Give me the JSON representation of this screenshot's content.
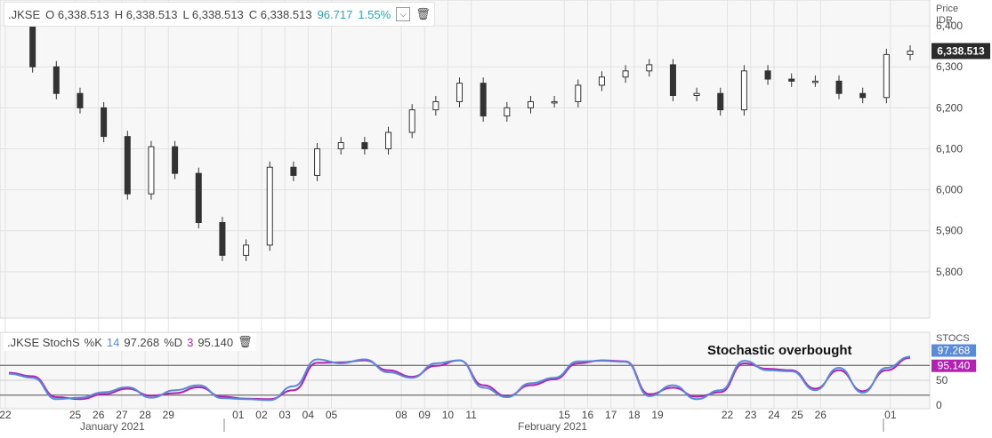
{
  "price_header": {
    "symbol": ".JKSE",
    "open": "O 6,338.513",
    "high": "H 6,338.513",
    "low": "L 6,338.513",
    "close": "C 6,338.513",
    "change": "96.717",
    "change_pct": "1.55%"
  },
  "stoch_header": {
    "symbol": ".JKSE StochS",
    "k_label": "%K",
    "k_period": "14",
    "k_value": "97.268",
    "d_label": "%D",
    "d_period": "3",
    "d_value": "95.140"
  },
  "annotation": "Stochastic overbought",
  "price_axis": {
    "title": "Price",
    "unit": "IDR",
    "last_badge": "6,338.513"
  },
  "stoch_axis": {
    "title": "STOCS",
    "k_badge": "97.268",
    "d_badge": "95.140"
  },
  "months": {
    "jan": "January 2021",
    "feb": "February 2021"
  },
  "colors": {
    "k_line": "#5a8bd6",
    "d_line": "#b221b2",
    "up_candle": "#ffffff",
    "down_candle": "#333333"
  },
  "chart_data": [
    {
      "type": "candlestick",
      "ylabel": "Price IDR",
      "ylim": [
        5700,
        6450
      ],
      "yticks": [
        "5,800",
        "5,900",
        "6,000",
        "6,100",
        "6,200",
        "6,300",
        "6,400"
      ],
      "grid": true,
      "xticks": [
        "22",
        "25",
        "26",
        "27",
        "28",
        "29",
        "01",
        "02",
        "03",
        "04",
        "05",
        "08",
        "09",
        "10",
        "11",
        "15",
        "16",
        "17",
        "18",
        "19",
        "22",
        "23",
        "24",
        "25",
        "26",
        "01"
      ],
      "x_start": "2021-01-22",
      "x_end": "2021-03-02",
      "last": 6338.513,
      "close": [
        6418,
        6300,
        6235,
        6200,
        6130,
        5990,
        6105,
        6040,
        5920,
        5840,
        5865,
        6055,
        6035,
        6100,
        6115,
        6100,
        6140,
        6195,
        6215,
        6260,
        6180,
        6200,
        6215,
        6215,
        6255,
        6275,
        6290,
        6305,
        6230,
        6235,
        6195,
        6290,
        6270,
        6265,
        6265,
        6235,
        6225,
        6330,
        6338.513
      ]
    },
    {
      "type": "line",
      "title": ".JKSE StochS",
      "ylim": [
        0,
        100
      ],
      "yticks": [
        "0",
        "50"
      ],
      "series": [
        {
          "name": "%K",
          "values": [
            63,
            55,
            12,
            15,
            26,
            36,
            15,
            30,
            40,
            14,
            12,
            10,
            38,
            92,
            84,
            92,
            66,
            55,
            84,
            90,
            35,
            16,
            44,
            55,
            88,
            89,
            87,
            18,
            40,
            12,
            30,
            89,
            70,
            68,
            30,
            75,
            25,
            75,
            97.268
          ]
        },
        {
          "name": "%D",
          "values": [
            65,
            58,
            16,
            12,
            22,
            33,
            19,
            24,
            36,
            17,
            13,
            12,
            30,
            85,
            86,
            90,
            70,
            57,
            79,
            90,
            40,
            18,
            40,
            52,
            84,
            90,
            88,
            22,
            35,
            17,
            26,
            84,
            73,
            70,
            33,
            70,
            28,
            70,
            95.14
          ]
        }
      ]
    }
  ]
}
